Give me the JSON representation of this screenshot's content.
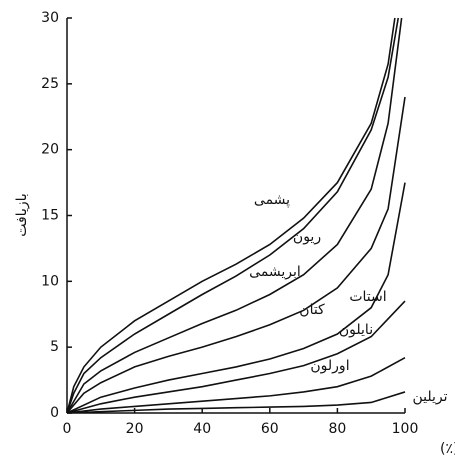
{
  "chart_data": {
    "type": "line",
    "x_label": "رطوبت نسبی (٪)",
    "y_label": "بازیافت",
    "xlim": [
      0,
      100
    ],
    "ylim": [
      0,
      30
    ],
    "xticks": [
      0,
      20,
      40,
      60,
      80,
      100
    ],
    "yticks": [
      0,
      5,
      10,
      15,
      20,
      25,
      30
    ],
    "color": "#111111",
    "series": [
      {
        "name": "پشمی",
        "x": [
          0,
          2,
          5,
          10,
          20,
          30,
          40,
          50,
          60,
          70,
          80,
          90,
          95,
          97
        ],
        "values": [
          0,
          2,
          3.5,
          5,
          7,
          8.5,
          10,
          11.3,
          12.8,
          14.8,
          17.5,
          22,
          26.5,
          30
        ]
      },
      {
        "name": "ریون",
        "x": [
          0,
          2,
          5,
          10,
          20,
          30,
          40,
          50,
          60,
          70,
          80,
          90,
          95,
          98
        ],
        "values": [
          0,
          1.5,
          3,
          4.2,
          6,
          7.5,
          9,
          10.4,
          12,
          14,
          16.8,
          21.5,
          25.5,
          30
        ]
      },
      {
        "name": "ابریشمی",
        "x": [
          0,
          5,
          10,
          20,
          30,
          40,
          50,
          60,
          70,
          80,
          90,
          95,
          99
        ],
        "values": [
          0,
          2.2,
          3.2,
          4.6,
          5.7,
          6.8,
          7.8,
          9,
          10.5,
          12.8,
          17,
          22,
          30
        ]
      },
      {
        "name": "کتان",
        "x": [
          0,
          5,
          10,
          20,
          30,
          40,
          50,
          60,
          70,
          80,
          90,
          95,
          100
        ],
        "values": [
          0,
          1.5,
          2.3,
          3.5,
          4.3,
          5,
          5.8,
          6.7,
          7.8,
          9.5,
          12.5,
          15.5,
          24
        ]
      },
      {
        "name": "استات",
        "x": [
          0,
          10,
          20,
          30,
          40,
          50,
          60,
          70,
          80,
          90,
          95,
          100
        ],
        "values": [
          0,
          1.2,
          1.9,
          2.5,
          3,
          3.5,
          4.1,
          4.9,
          6,
          8,
          10.5,
          17.5
        ]
      },
      {
        "name": "نایلون",
        "x": [
          0,
          10,
          20,
          30,
          40,
          50,
          60,
          70,
          80,
          90,
          100
        ],
        "values": [
          0,
          0.7,
          1.2,
          1.6,
          2,
          2.5,
          3,
          3.6,
          4.5,
          5.8,
          8.5
        ]
      },
      {
        "name": "اورلون",
        "x": [
          0,
          10,
          20,
          30,
          40,
          50,
          60,
          70,
          80,
          90,
          100
        ],
        "values": [
          0,
          0.3,
          0.5,
          0.7,
          0.9,
          1.1,
          1.3,
          1.6,
          2,
          2.8,
          4.2
        ]
      },
      {
        "name": "تریلین",
        "x": [
          0,
          10,
          20,
          30,
          40,
          50,
          60,
          70,
          80,
          90,
          100
        ],
        "values": [
          0,
          0.1,
          0.2,
          0.3,
          0.35,
          0.4,
          0.45,
          0.5,
          0.6,
          0.8,
          1.6
        ]
      }
    ]
  }
}
